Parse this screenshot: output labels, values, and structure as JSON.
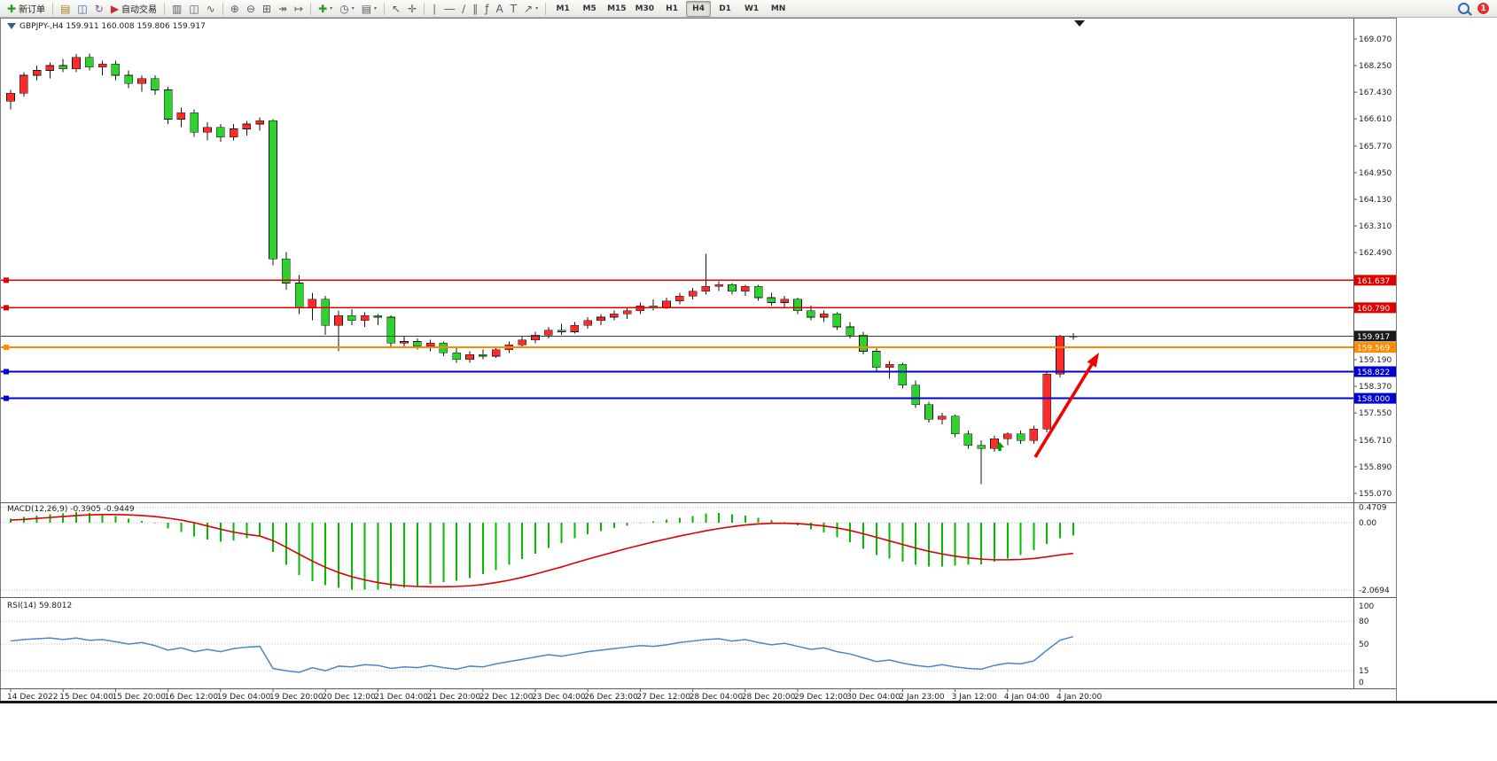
{
  "toolbar": {
    "items": [
      {
        "name": "new-order-button",
        "glyph": "✚",
        "glyph_color": "#1f9e1f",
        "label": "新订单"
      },
      {
        "type": "sep"
      },
      {
        "name": "profiles-button",
        "glyph": "▤",
        "glyph_color": "#a98021"
      },
      {
        "name": "market-watch-button",
        "glyph": "◫",
        "glyph_color": "#41659c"
      },
      {
        "name": "refresh-button",
        "glyph": "↻",
        "glyph_color": "#8a4d9e"
      },
      {
        "name": "autotrading-button",
        "glyph": "▶",
        "glyph_color": "#c03030",
        "label": "自动交易"
      },
      {
        "type": "sep"
      },
      {
        "name": "bar-chart-button",
        "glyph": "▥"
      },
      {
        "name": "candlestick-chart-button",
        "glyph": "◫"
      },
      {
        "name": "line-chart-button",
        "glyph": "∿"
      },
      {
        "type": "sep"
      },
      {
        "name": "zoom-in-button",
        "glyph": "⊕"
      },
      {
        "name": "zoom-out-button",
        "glyph": "⊖"
      },
      {
        "name": "tile-windows-button",
        "glyph": "⊞"
      },
      {
        "name": "auto-scroll-button",
        "glyph": "↠"
      },
      {
        "name": "chart-shift-button",
        "glyph": "↦"
      },
      {
        "type": "sep"
      },
      {
        "name": "indicators-button",
        "glyph": "✚",
        "glyph_color": "#1f9e1f",
        "caret": true
      },
      {
        "name": "periods-button",
        "glyph": "◷",
        "caret": true
      },
      {
        "name": "templates-button",
        "glyph": "▤",
        "caret": true
      },
      {
        "type": "sep"
      },
      {
        "name": "cursor-button",
        "glyph": "↖"
      },
      {
        "name": "crosshair-button",
        "glyph": "✛"
      },
      {
        "type": "sep"
      },
      {
        "name": "vertical-line-button",
        "glyph": "∣"
      },
      {
        "name": "horizontal-line-button",
        "glyph": "―"
      },
      {
        "name": "trendline-button",
        "glyph": "∕"
      },
      {
        "name": "channel-button",
        "glyph": "∥"
      },
      {
        "name": "fibonacci-button",
        "glyph": "ƒ"
      },
      {
        "name": "text-button",
        "glyph": "A"
      },
      {
        "name": "label-button",
        "glyph": "T"
      },
      {
        "name": "arrows-button",
        "glyph": "↗",
        "caret": true
      },
      {
        "type": "sep"
      },
      {
        "type": "timeframes"
      },
      {
        "type": "spacer"
      },
      {
        "type": "search"
      },
      {
        "type": "badge"
      }
    ],
    "timeframes": [
      "M1",
      "M5",
      "M15",
      "M30",
      "H1",
      "H4",
      "D1",
      "W1",
      "MN"
    ],
    "active_timeframe": "H4",
    "notification_count": "1"
  },
  "chart_data": {
    "type": "candlestick",
    "symbol": "GBPJPY-",
    "timeframe": "H4",
    "header": "GBPJPY-,H4  159.911 160.008 159.806 159.917",
    "ohlc_display": {
      "open": 159.911,
      "high": 160.008,
      "low": 159.806,
      "close": 159.917
    },
    "candles": [
      [
        167.15,
        167.5,
        166.9,
        167.4
      ],
      [
        167.4,
        168.05,
        167.3,
        167.95
      ],
      [
        167.95,
        168.25,
        167.8,
        168.1
      ],
      [
        168.1,
        168.35,
        167.85,
        168.25
      ],
      [
        168.25,
        168.45,
        168.05,
        168.15
      ],
      [
        168.15,
        168.6,
        168.05,
        168.5
      ],
      [
        168.5,
        168.62,
        168.1,
        168.2
      ],
      [
        168.2,
        168.4,
        167.95,
        168.3
      ],
      [
        168.3,
        168.4,
        167.8,
        167.95
      ],
      [
        167.95,
        168.1,
        167.55,
        167.7
      ],
      [
        167.7,
        167.95,
        167.45,
        167.85
      ],
      [
        167.85,
        167.95,
        167.35,
        167.5
      ],
      [
        167.5,
        167.6,
        166.45,
        166.6
      ],
      [
        166.6,
        166.95,
        166.35,
        166.8
      ],
      [
        166.8,
        166.9,
        166.05,
        166.2
      ],
      [
        166.2,
        166.5,
        165.95,
        166.35
      ],
      [
        166.35,
        166.45,
        165.9,
        166.05
      ],
      [
        166.05,
        166.45,
        165.95,
        166.3
      ],
      [
        166.3,
        166.55,
        166.1,
        166.45
      ],
      [
        166.45,
        166.65,
        166.25,
        166.55
      ],
      [
        166.55,
        166.6,
        162.1,
        162.3
      ],
      [
        162.3,
        162.5,
        161.35,
        161.55
      ],
      [
        161.55,
        161.8,
        160.6,
        160.8
      ],
      [
        160.8,
        161.25,
        160.4,
        161.05
      ],
      [
        161.05,
        161.15,
        159.95,
        160.25
      ],
      [
        160.25,
        160.7,
        159.45,
        160.55
      ],
      [
        160.55,
        160.75,
        160.25,
        160.4
      ],
      [
        160.4,
        160.65,
        160.2,
        160.55
      ],
      [
        160.55,
        160.6,
        160.25,
        160.5
      ],
      [
        160.5,
        160.55,
        159.55,
        159.7
      ],
      [
        159.7,
        159.9,
        159.55,
        159.75
      ],
      [
        159.75,
        159.85,
        159.5,
        159.6
      ],
      [
        159.6,
        159.8,
        159.45,
        159.7
      ],
      [
        159.7,
        159.75,
        159.3,
        159.4
      ],
      [
        159.4,
        159.55,
        159.1,
        159.2
      ],
      [
        159.2,
        159.45,
        159.1,
        159.35
      ],
      [
        159.35,
        159.5,
        159.2,
        159.3
      ],
      [
        159.3,
        159.6,
        159.25,
        159.5
      ],
      [
        159.5,
        159.75,
        159.4,
        159.65
      ],
      [
        159.65,
        159.9,
        159.55,
        159.8
      ],
      [
        159.8,
        160.05,
        159.7,
        159.95
      ],
      [
        159.95,
        160.2,
        159.85,
        160.1
      ],
      [
        160.1,
        160.3,
        159.95,
        160.05
      ],
      [
        160.05,
        160.35,
        160.0,
        160.25
      ],
      [
        160.25,
        160.5,
        160.15,
        160.4
      ],
      [
        160.4,
        160.6,
        160.25,
        160.5
      ],
      [
        160.5,
        160.7,
        160.4,
        160.6
      ],
      [
        160.6,
        160.8,
        160.45,
        160.7
      ],
      [
        160.7,
        160.95,
        160.6,
        160.85
      ],
      [
        160.85,
        161.05,
        160.7,
        160.8
      ],
      [
        160.8,
        161.1,
        160.75,
        161.0
      ],
      [
        161.0,
        161.25,
        160.9,
        161.15
      ],
      [
        161.15,
        161.4,
        161.05,
        161.3
      ],
      [
        161.3,
        162.45,
        161.2,
        161.45
      ],
      [
        161.45,
        161.6,
        161.3,
        161.5
      ],
      [
        161.5,
        161.55,
        161.2,
        161.3
      ],
      [
        161.3,
        161.5,
        161.15,
        161.45
      ],
      [
        161.45,
        161.5,
        161.0,
        161.1
      ],
      [
        161.1,
        161.25,
        160.85,
        160.95
      ],
      [
        160.95,
        161.15,
        160.8,
        161.05
      ],
      [
        161.05,
        161.1,
        160.6,
        160.7
      ],
      [
        160.7,
        160.85,
        160.4,
        160.5
      ],
      [
        160.5,
        160.7,
        160.35,
        160.6
      ],
      [
        160.6,
        160.65,
        160.1,
        160.2
      ],
      [
        160.2,
        160.35,
        159.85,
        159.95
      ],
      [
        159.95,
        160.05,
        159.35,
        159.45
      ],
      [
        159.45,
        159.6,
        158.8,
        158.95
      ],
      [
        158.95,
        159.15,
        158.6,
        159.05
      ],
      [
        159.05,
        159.1,
        158.3,
        158.4
      ],
      [
        158.4,
        158.55,
        157.7,
        157.8
      ],
      [
        157.8,
        157.9,
        157.25,
        157.35
      ],
      [
        157.35,
        157.55,
        157.2,
        157.45
      ],
      [
        157.45,
        157.5,
        156.8,
        156.9
      ],
      [
        156.9,
        157.0,
        156.45,
        156.55
      ],
      [
        156.55,
        156.7,
        155.35,
        156.45
      ],
      [
        156.45,
        156.85,
        156.35,
        156.75
      ],
      [
        156.75,
        156.95,
        156.55,
        156.9
      ],
      [
        156.9,
        157.0,
        156.6,
        156.7
      ],
      [
        156.7,
        157.15,
        156.6,
        157.05
      ],
      [
        157.05,
        158.85,
        156.95,
        158.75
      ],
      [
        158.75,
        159.95,
        158.65,
        159.905
      ],
      [
        159.911,
        160.008,
        159.806,
        159.917
      ]
    ],
    "label_every_n_candles": 4,
    "time_labels": [
      "14 Dec 2022",
      "15 Dec 04:00",
      "15 Dec 20:00",
      "16 Dec 12:00",
      "19 Dec 04:00",
      "19 Dec 20:00",
      "20 Dec 12:00",
      "21 Dec 04:00",
      "21 Dec 20:00",
      "22 Dec 12:00",
      "23 Dec 04:00",
      "26 Dec 23:00",
      "27 Dec 12:00",
      "28 Dec 04:00",
      "28 Dec 20:00",
      "29 Dec 12:00",
      "30 Dec 04:00",
      "2 Jan 23:00",
      "3 Jan 12:00",
      "4 Jan 04:00",
      "4 Jan 20:00"
    ],
    "price_axis": {
      "regular": [
        "169.070",
        "168.250",
        "167.430",
        "166.610",
        "165.770",
        "164.950",
        "164.130",
        "163.310",
        "162.490",
        "159.190",
        "158.370",
        "157.550",
        "156.710",
        "155.890",
        "155.070"
      ],
      "tags": [
        {
          "text": "161.637",
          "color": "#e00000"
        },
        {
          "text": "160.790",
          "color": "#e00000"
        },
        {
          "text": "159.917",
          "color": "#1a1a1a"
        },
        {
          "text": "159.569",
          "color": "#ff8a00"
        },
        {
          "text": "158.822",
          "color": "#0000d0"
        },
        {
          "text": "158.000",
          "color": "#0000d0"
        }
      ]
    },
    "hlines": [
      {
        "name": "resistance-line-161637",
        "price": 161.637,
        "color": "#e00000",
        "width": 1.4,
        "anchor": true
      },
      {
        "name": "resistance-line-160790",
        "price": 160.79,
        "color": "#e00000",
        "width": 1.4,
        "anchor": true
      },
      {
        "name": "current-price-line",
        "price": 159.917,
        "color": "#3a3a3a",
        "width": 1,
        "anchor": false
      },
      {
        "name": "support-line-159569",
        "price": 159.569,
        "color": "#ff8a00",
        "width": 2,
        "anchor": true
      },
      {
        "name": "support-line-158822",
        "price": 158.822,
        "color": "#0000d0",
        "width": 1.8,
        "anchor": true
      },
      {
        "name": "support-line-158000",
        "price": 158.0,
        "color": "#0000d0",
        "width": 1.8,
        "anchor": true
      }
    ],
    "indicators": {
      "macd": {
        "label": "MACD(12,26,9) -0.3905 -0.9449",
        "params": "12,26,9",
        "value": -0.3905,
        "signal_value": -0.9449,
        "axis_labels": [
          "0.4709",
          "0.00",
          "-2.0694"
        ],
        "axis_values": [
          0.4709,
          0,
          -2.0694
        ],
        "histogram": [
          0.12,
          0.18,
          0.22,
          0.26,
          0.28,
          0.32,
          0.3,
          0.26,
          0.2,
          0.12,
          0.06,
          -0.02,
          -0.18,
          -0.28,
          -0.42,
          -0.52,
          -0.58,
          -0.55,
          -0.48,
          -0.4,
          -0.9,
          -1.3,
          -1.6,
          -1.8,
          -1.92,
          -2.0,
          -2.05,
          -2.06,
          -2.05,
          -2.03,
          -2.0,
          -1.95,
          -1.88,
          -1.82,
          -1.78,
          -1.7,
          -1.58,
          -1.45,
          -1.3,
          -1.12,
          -0.95,
          -0.78,
          -0.62,
          -0.48,
          -0.36,
          -0.26,
          -0.17,
          -0.09,
          -0.02,
          0.04,
          0.1,
          0.15,
          0.2,
          0.28,
          0.3,
          0.26,
          0.22,
          0.15,
          0.08,
          0.02,
          -0.08,
          -0.2,
          -0.3,
          -0.45,
          -0.6,
          -0.8,
          -1.0,
          -1.1,
          -1.2,
          -1.3,
          -1.35,
          -1.35,
          -1.32,
          -1.3,
          -1.28,
          -1.2,
          -1.1,
          -1.0,
          -0.85,
          -0.65,
          -0.48,
          -0.3905
        ],
        "signal": [
          0.08,
          0.1,
          0.13,
          0.16,
          0.19,
          0.22,
          0.24,
          0.25,
          0.25,
          0.24,
          0.22,
          0.19,
          0.14,
          0.08,
          0.0,
          -0.1,
          -0.2,
          -0.29,
          -0.36,
          -0.41,
          -0.55,
          -0.75,
          -0.97,
          -1.18,
          -1.37,
          -1.53,
          -1.66,
          -1.76,
          -1.84,
          -1.9,
          -1.94,
          -1.96,
          -1.97,
          -1.97,
          -1.96,
          -1.94,
          -1.9,
          -1.84,
          -1.77,
          -1.68,
          -1.58,
          -1.47,
          -1.36,
          -1.24,
          -1.12,
          -1.01,
          -0.9,
          -0.79,
          -0.69,
          -0.59,
          -0.5,
          -0.41,
          -0.33,
          -0.25,
          -0.18,
          -0.12,
          -0.07,
          -0.04,
          -0.02,
          -0.02,
          -0.03,
          -0.06,
          -0.1,
          -0.16,
          -0.24,
          -0.34,
          -0.45,
          -0.56,
          -0.67,
          -0.78,
          -0.88,
          -0.96,
          -1.03,
          -1.08,
          -1.12,
          -1.14,
          -1.14,
          -1.13,
          -1.1,
          -1.05,
          -0.99,
          -0.9449
        ]
      },
      "rsi": {
        "label": "RSI(14) 59.8012",
        "period": 14,
        "value": 59.8012,
        "axis_labels": [
          "100",
          "80",
          "50",
          "15",
          "0"
        ],
        "axis_values": [
          100,
          80,
          50,
          15,
          0
        ],
        "levels": [
          80,
          50,
          15
        ],
        "series": [
          54,
          56,
          57,
          58,
          56,
          58,
          55,
          56,
          53,
          50,
          52,
          48,
          42,
          45,
          40,
          43,
          40,
          44,
          46,
          47,
          18,
          15,
          13,
          19,
          15,
          21,
          20,
          23,
          22,
          18,
          20,
          19,
          22,
          19,
          17,
          21,
          20,
          24,
          27,
          30,
          33,
          36,
          34,
          37,
          40,
          42,
          44,
          46,
          48,
          47,
          49,
          52,
          54,
          56,
          57,
          54,
          56,
          52,
          49,
          51,
          47,
          43,
          45,
          40,
          37,
          32,
          27,
          29,
          25,
          22,
          20,
          23,
          20,
          18,
          17,
          22,
          25,
          24,
          28,
          42,
          55,
          59.8
        ]
      }
    },
    "annotations": {
      "arrow": {
        "from": [
          1168,
          516
        ],
        "to": [
          1240,
          398
        ],
        "color": "#f20000"
      },
      "up_marker": {
        "x": 1128,
        "y": 504,
        "color": "#00a000"
      },
      "scroll_marker": {
        "x": 1218,
        "y": 23
      }
    },
    "colors": {
      "up_candle": "#ff2a2a",
      "down_candle": "#2ed22e",
      "wick": "#141414",
      "macd_hist": "#00bd00",
      "macd_signal": "#dd0000",
      "rsi_line": "#4a86c8"
    }
  }
}
